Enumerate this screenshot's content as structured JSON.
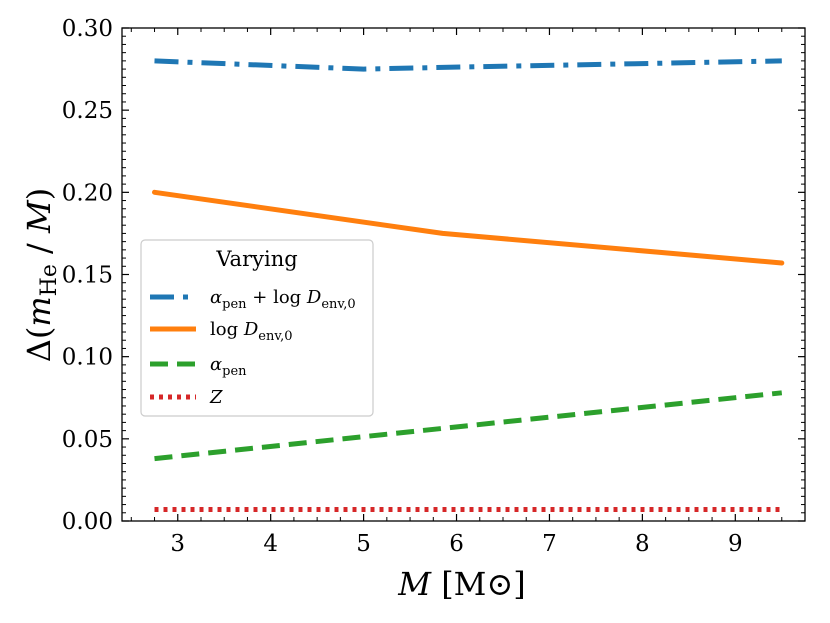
{
  "chart_data": {
    "type": "line",
    "title": "",
    "xlabel": "M [M⊙]",
    "ylabel": "Δ(m_He / M)",
    "xlim": [
      2.4,
      9.75
    ],
    "ylim": [
      0.0,
      0.3
    ],
    "x_ticks": [
      "3",
      "4",
      "5",
      "6",
      "7",
      "8",
      "9"
    ],
    "y_ticks": [
      "0.00",
      "0.05",
      "0.10",
      "0.15",
      "0.20",
      "0.25",
      "0.30"
    ],
    "grid": false,
    "legend": {
      "title": "Varying",
      "placement": "center-left"
    },
    "series": [
      {
        "name": "α_pen + log D_env,0",
        "label_parts": {
          "main": "α",
          "sub": "pen",
          "rest": " + log ",
          "var": "D",
          "sub2": "env,0"
        },
        "color": "#1f77b4",
        "style": "dashdot",
        "x": [
          2.75,
          5.0,
          5.85,
          9.5
        ],
        "y": [
          0.28,
          0.275,
          0.276,
          0.28
        ]
      },
      {
        "name": "log D_env,0",
        "label_parts": {
          "main": "log ",
          "var": "D",
          "sub": "env,0"
        },
        "color": "#ff7f0e",
        "style": "solid",
        "x": [
          2.75,
          5.85,
          9.5
        ],
        "y": [
          0.2,
          0.175,
          0.157
        ]
      },
      {
        "name": "α_pen",
        "label_parts": {
          "main": "α",
          "sub": "pen"
        },
        "color": "#2ca02c",
        "style": "dashed",
        "x": [
          2.75,
          9.5
        ],
        "y": [
          0.038,
          0.078
        ]
      },
      {
        "name": "Z",
        "label_parts": {
          "var": "Z"
        },
        "color": "#d62728",
        "style": "dotted",
        "x": [
          2.75,
          9.5
        ],
        "y": [
          0.007,
          0.007
        ]
      }
    ]
  }
}
